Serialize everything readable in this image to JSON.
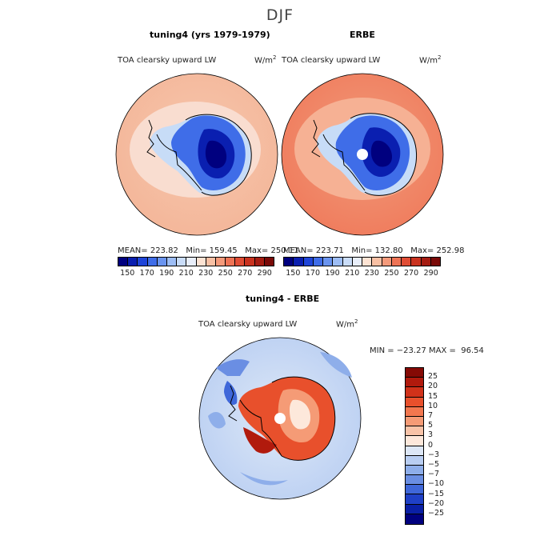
{
  "season": "DJF",
  "panels": [
    {
      "title": "tuning4 (yrs 1979-1979)",
      "variable": "TOA clearsky upward LW",
      "units": "W/m",
      "units_sup": "2",
      "mean": "MEAN= 223.82",
      "min": "Min= 159.45",
      "max": "Max= 250.11"
    },
    {
      "title": "ERBE",
      "variable": "TOA clearsky upward LW",
      "units": "W/m",
      "units_sup": "2",
      "mean": "MEAN= 223.71",
      "min": "Min= 132.80",
      "max": "Max= 252.98"
    }
  ],
  "shared_colorbar": {
    "labels": [
      "150",
      "170",
      "190",
      "210",
      "230",
      "250",
      "270",
      "290"
    ],
    "colors": [
      "#00007f",
      "#0a1fb0",
      "#1f45d8",
      "#3f6de8",
      "#6a94ef",
      "#9dbdf5",
      "#c9dcf8",
      "#e8eefa",
      "#fde3d3",
      "#f8c0a4",
      "#f49a7b",
      "#ee7355",
      "#e04d35",
      "#c9321f",
      "#a51c12",
      "#7a0a08"
    ]
  },
  "difference": {
    "title": "tuning4 - ERBE",
    "variable": "TOA clearsky upward LW",
    "units": "W/m",
    "units_sup": "2",
    "minmax": "MIN = −23.27 MAX =  96.54",
    "colorbar_labels": [
      "25",
      "20",
      "15",
      "10",
      "7",
      "5",
      "3",
      "0",
      "−3",
      "−5",
      "−7",
      "−10",
      "−15",
      "−20",
      "−25"
    ],
    "colorbar_colors": [
      "#850a05",
      "#b11a0d",
      "#d1321a",
      "#e8502c",
      "#f2774f",
      "#f59b76",
      "#f8c3a8",
      "#fde8db",
      "#dde7f6",
      "#b9cef2",
      "#8eaeea",
      "#6a8ee3",
      "#3f67d9",
      "#1f40c6",
      "#0a1fa5",
      "#00007f"
    ]
  }
}
